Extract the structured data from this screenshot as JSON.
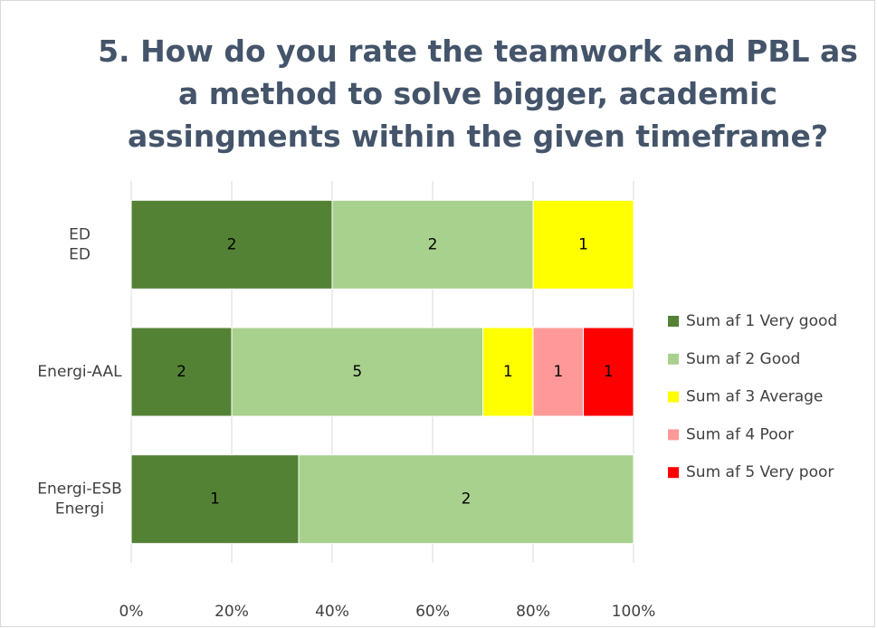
{
  "chart_data": {
    "type": "bar",
    "orientation": "horizontal",
    "stacked": "percent",
    "title": "5. How do you rate the teamwork and PBL as a method to solve bigger, academic assingments within the given timeframe?",
    "categories": [
      "ED\nED",
      "Energi-AAL",
      "Energi-ESB\nEnergi"
    ],
    "series": [
      {
        "name": "Sum af 1 Very good",
        "color": "#548235",
        "values": [
          2,
          2,
          1
        ]
      },
      {
        "name": "Sum af 2 Good",
        "color": "#a9d18e",
        "values": [
          2,
          5,
          2
        ]
      },
      {
        "name": "Sum af 3 Average",
        "color": "#ffff00",
        "values": [
          1,
          1,
          null
        ]
      },
      {
        "name": "Sum af 4 Poor",
        "color": "#ff9999",
        "values": [
          null,
          1,
          null
        ]
      },
      {
        "name": "Sum af 5 Very poor",
        "color": "#ff0000",
        "values": [
          null,
          1,
          null
        ]
      }
    ],
    "xlim": [
      0,
      100
    ],
    "xticks": [
      {
        "value": 0,
        "label": "0%"
      },
      {
        "value": 20,
        "label": "20%"
      },
      {
        "value": 40,
        "label": "40%"
      },
      {
        "value": 60,
        "label": "60%"
      },
      {
        "value": 80,
        "label": "80%"
      },
      {
        "value": 100,
        "label": "100%"
      }
    ],
    "grid": true,
    "legend": "right",
    "data_labels": true
  }
}
